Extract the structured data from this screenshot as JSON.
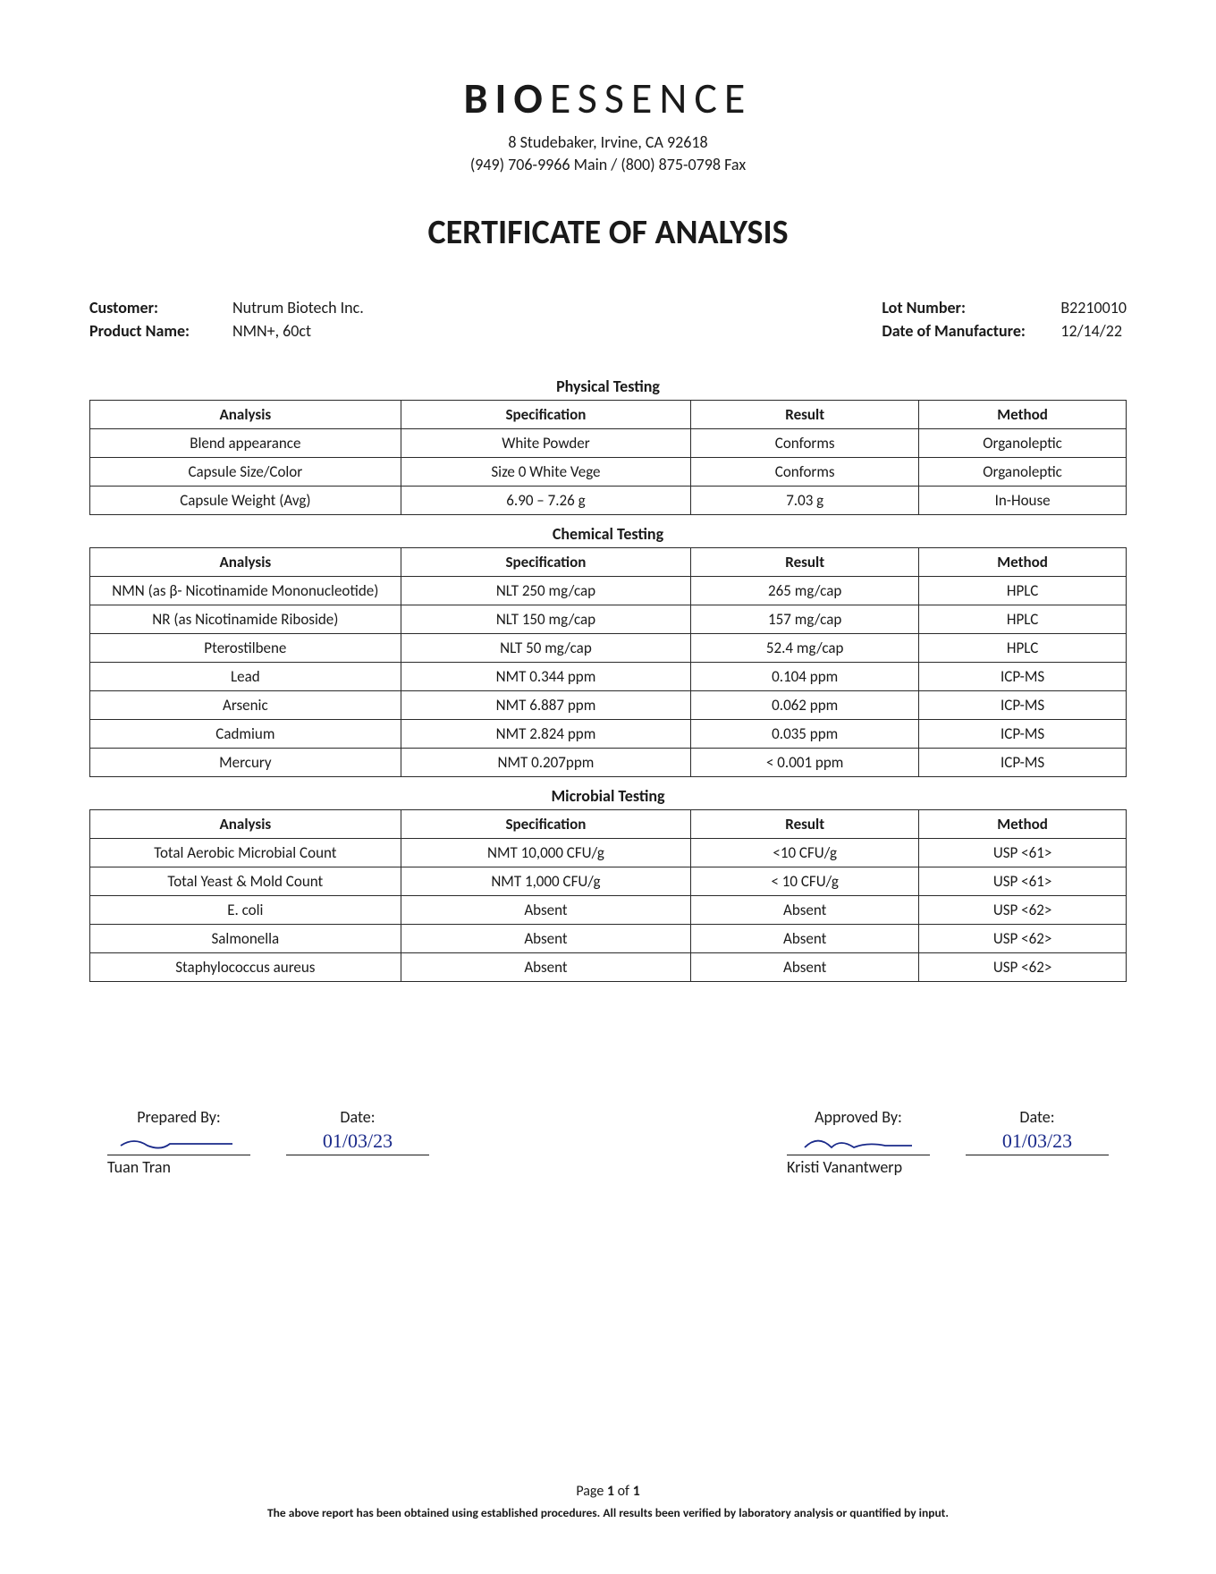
{
  "company": {
    "name_bold": "BIO",
    "name_light": "ESSENCE",
    "address_line1": "8 Studebaker, Irvine, CA 92618",
    "address_line2": "(949) 706-9966 Main / (800) 875-0798 Fax"
  },
  "title": "CERTIFICATE OF ANALYSIS",
  "meta": {
    "customer_label": "Customer:",
    "customer_value": "Nutrum Biotech Inc.",
    "product_label": "Product Name:",
    "product_value": "NMN+, 60ct",
    "lot_label": "Lot Number:",
    "lot_value": "B2210010",
    "dom_label": "Date of Manufacture:",
    "dom_value": "12/14/22"
  },
  "headers": {
    "analysis": "Analysis",
    "specification": "Specification",
    "result": "Result",
    "method": "Method"
  },
  "physical": {
    "title": "Physical Testing",
    "rows": [
      {
        "analysis": "Blend appearance",
        "spec": "White Powder",
        "result": "Conforms",
        "method": "Organoleptic"
      },
      {
        "analysis": "Capsule Size/Color",
        "spec": "Size 0 White Vege",
        "result": "Conforms",
        "method": "Organoleptic"
      },
      {
        "analysis": "Capsule Weight (Avg)",
        "spec": "6.90 – 7.26 g",
        "result": "7.03 g",
        "method": "In-House"
      }
    ]
  },
  "chemical": {
    "title": "Chemical Testing",
    "rows": [
      {
        "analysis": "NMN (as β- Nicotinamide Mononucleotide)",
        "spec": "NLT 250 mg/cap",
        "result": "265 mg/cap",
        "method": "HPLC"
      },
      {
        "analysis": "NR (as Nicotinamide Riboside)",
        "spec": "NLT 150 mg/cap",
        "result": "157 mg/cap",
        "method": "HPLC"
      },
      {
        "analysis": "Pterostilbene",
        "spec": "NLT 50 mg/cap",
        "result": "52.4 mg/cap",
        "method": "HPLC"
      },
      {
        "analysis": "Lead",
        "spec": "NMT 0.344 ppm",
        "result": "0.104 ppm",
        "method": "ICP-MS"
      },
      {
        "analysis": "Arsenic",
        "spec": "NMT 6.887 ppm",
        "result": "0.062 ppm",
        "method": "ICP-MS"
      },
      {
        "analysis": "Cadmium",
        "spec": "NMT 2.824 ppm",
        "result": "0.035 ppm",
        "method": "ICP-MS"
      },
      {
        "analysis": "Mercury",
        "spec": "NMT 0.207ppm",
        "result": "< 0.001 ppm",
        "method": "ICP-MS"
      }
    ]
  },
  "microbial": {
    "title": "Microbial Testing",
    "rows": [
      {
        "analysis": "Total Aerobic Microbial Count",
        "spec": "NMT 10,000 CFU/g",
        "result": "<10 CFU/g",
        "method": "USP <61>"
      },
      {
        "analysis": "Total Yeast & Mold Count",
        "spec": "NMT 1,000 CFU/g",
        "result": "< 10 CFU/g",
        "method": "USP <61>"
      },
      {
        "analysis": "E. coli",
        "spec": "Absent",
        "result": "Absent",
        "method": "USP <62>"
      },
      {
        "analysis": "Salmonella",
        "spec": "Absent",
        "result": "Absent",
        "method": "USP <62>"
      },
      {
        "analysis": "Staphylococcus aureus",
        "spec": "Absent",
        "result": "Absent",
        "method": "USP <62>"
      }
    ]
  },
  "signatures": {
    "prepared_label": "Prepared By:",
    "prepared_name": "Tuan Tran",
    "prepared_date": "01/03/23",
    "approved_label": "Approved By:",
    "approved_name": "Kristi Vanantwerp",
    "approved_date": "01/03/23",
    "date_label": "Date:"
  },
  "footer": {
    "page_prefix": "Page ",
    "page_current": "1",
    "page_of": " of ",
    "page_total": "1",
    "disclaimer": "The above report has been obtained using established procedures. All results been verified by laboratory analysis or quantified by input."
  }
}
